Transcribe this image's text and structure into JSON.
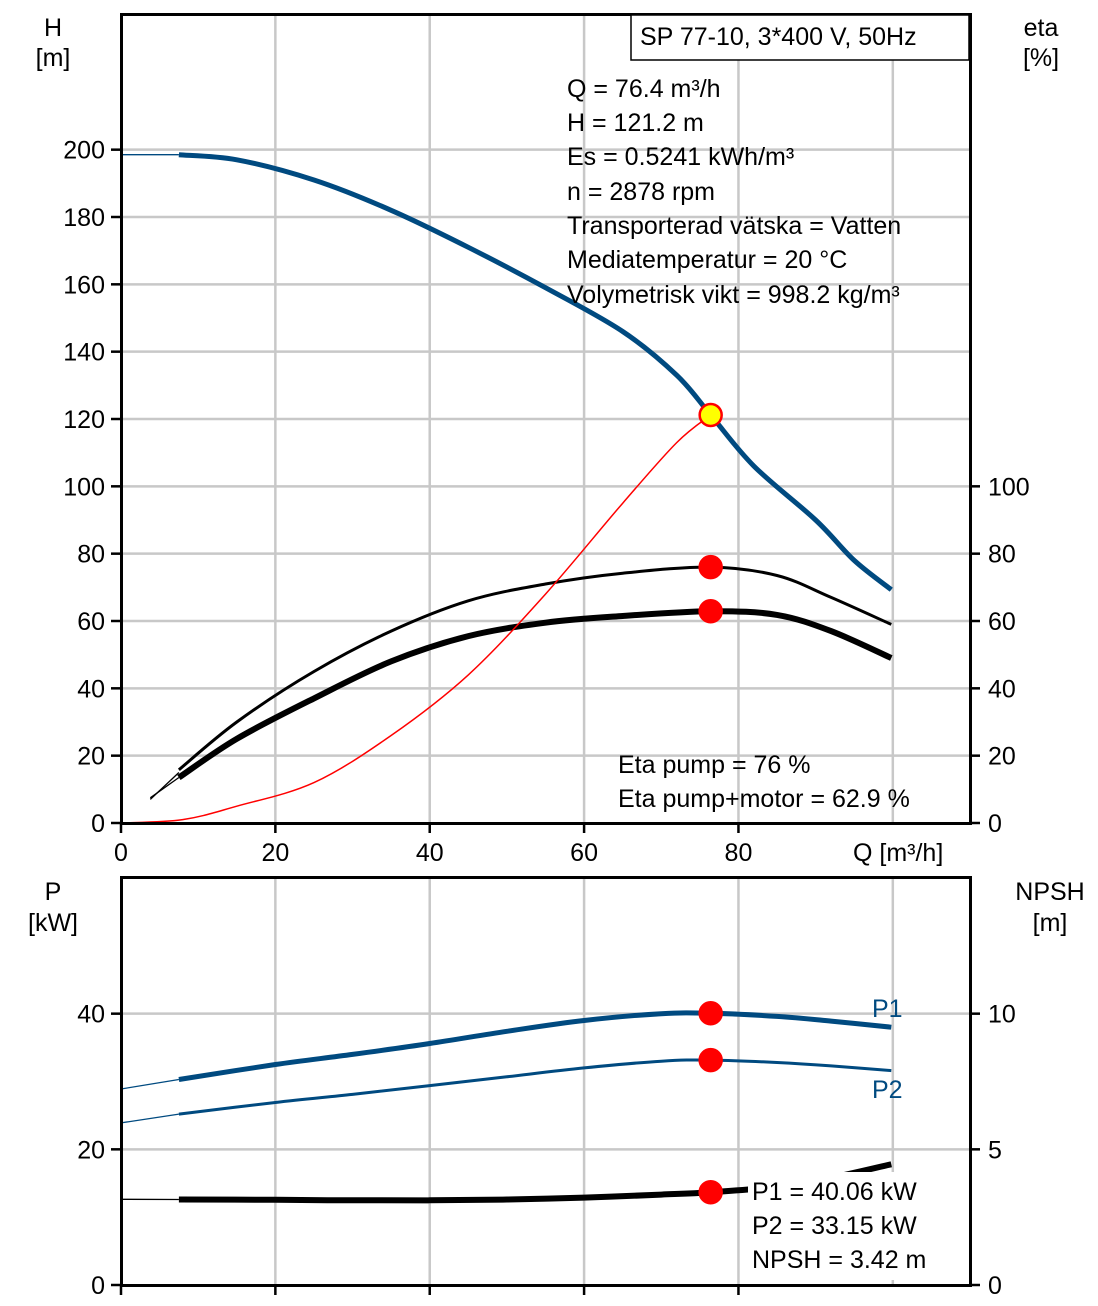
{
  "colors": {
    "blue": "#004a80",
    "black": "#000000",
    "red": "#ff0000",
    "yellow": "#ffff00",
    "grid": "#c8c8c8"
  },
  "chart_data": [
    {
      "type": "line",
      "title": "SP 77-10, 3*400 V, 50Hz",
      "xlabel": "Q [m³/h]",
      "ylabel_left": [
        "H",
        "[m]"
      ],
      "ylabel_right": [
        "eta",
        "[%]"
      ],
      "xlim": [
        0,
        110
      ],
      "ylim_left": [
        0,
        240
      ],
      "ylim_right": [
        0,
        240
      ],
      "x_ticks": [
        "0",
        "20",
        "40",
        "60",
        "80"
      ],
      "y_ticks_left": [
        "0",
        "20",
        "40",
        "60",
        "80",
        "100",
        "120",
        "140",
        "160",
        "180",
        "200"
      ],
      "y_ticks_right": [
        "0",
        "20",
        "40",
        "60",
        "80",
        "100"
      ],
      "grid": true,
      "info_lines": [
        "Q = 76.4 m³/h",
        "H = 121.2 m",
        "Es = 0.5241 kWh/m³",
        "n = 2878 rpm",
        "Transporterad vätska = Vatten",
        "Mediatemperatur = 20 °C",
        "Volymetrisk vikt = 998.2 kg/m³"
      ],
      "eta_lines": [
        "Eta pump = 76 %",
        "Eta pump+motor = 62.9 %"
      ],
      "series": [
        {
          "key": "H",
          "color": "blue",
          "width": 5,
          "ext": [
            [
              0,
              198.5
            ],
            [
              7.5,
              198.5
            ]
          ],
          "points": [
            [
              7.5,
              198.5
            ],
            [
              15,
              197
            ],
            [
              25,
              191
            ],
            [
              35,
              182
            ],
            [
              45,
              171
            ],
            [
              55,
              159
            ],
            [
              65,
              146
            ],
            [
              72,
              133
            ],
            [
              76.4,
              121.2
            ],
            [
              82,
              106
            ],
            [
              90,
              90
            ],
            [
              95,
              78
            ],
            [
              99.8,
              69.3
            ]
          ]
        },
        {
          "key": "eta_pump",
          "color": "black",
          "width": 3,
          "ext": [
            [
              3.8,
              7
            ],
            [
              7.5,
              15
            ]
          ],
          "points": [
            [
              7.5,
              15.8
            ],
            [
              15,
              30
            ],
            [
              25,
              45
            ],
            [
              35,
              57
            ],
            [
              45,
              66
            ],
            [
              55,
              71
            ],
            [
              65,
              74.2
            ],
            [
              76.4,
              76
            ],
            [
              85,
              73.5
            ],
            [
              92,
              67
            ],
            [
              99.8,
              59
            ]
          ]
        },
        {
          "key": "eta_total",
          "color": "black",
          "width": 6,
          "ext": [
            [
              3.8,
              7.5
            ],
            [
              7.5,
              13.5
            ]
          ],
          "points": [
            [
              7.5,
              13.5
            ],
            [
              15,
              25
            ],
            [
              25,
              37
            ],
            [
              35,
              48
            ],
            [
              45,
              55.5
            ],
            [
              55,
              59.5
            ],
            [
              65,
              61.5
            ],
            [
              76.4,
              62.9
            ],
            [
              85,
              61.8
            ],
            [
              92,
              57
            ],
            [
              99.8,
              49
            ]
          ]
        },
        {
          "key": "system",
          "color": "red",
          "width": 1.5,
          "ext": [],
          "points": [
            [
              0,
              0
            ],
            [
              8,
              1
            ],
            [
              15,
              5
            ],
            [
              25,
              12
            ],
            [
              35,
              26
            ],
            [
              45,
              44
            ],
            [
              55,
              68
            ],
            [
              65,
              95
            ],
            [
              72,
              113
            ],
            [
              76.4,
              121.2
            ]
          ]
        }
      ],
      "markers": [
        {
          "x": 76.4,
          "y": 121.2,
          "fill": "yellow",
          "stroke": "red"
        },
        {
          "x": 76.4,
          "y": 76,
          "fill": "red",
          "stroke": "red"
        },
        {
          "x": 76.4,
          "y": 62.9,
          "fill": "red",
          "stroke": "red"
        }
      ]
    },
    {
      "type": "line",
      "xlim": [
        0,
        110
      ],
      "ylabel_left": [
        "P",
        "[kW]"
      ],
      "ylabel_right": [
        "NPSH",
        "[m]"
      ],
      "ylim_left": [
        0,
        60
      ],
      "ylim_right": [
        0,
        15
      ],
      "y_ticks_left": [
        "0",
        "20",
        "40"
      ],
      "y_ticks_right": [
        "0",
        "5",
        "10"
      ],
      "grid": true,
      "series_labels": [
        "P1",
        "P2"
      ],
      "info_lines": [
        "P1 = 40.06 kW",
        "P2 = 33.15 kW",
        "NPSH = 3.42 m"
      ],
      "series": [
        {
          "key": "P1",
          "color": "blue",
          "width": 5,
          "ext": [
            [
              0,
              28.9
            ],
            [
              7.5,
              30.3
            ]
          ],
          "points": [
            [
              7.5,
              30.3
            ],
            [
              20,
              32.5
            ],
            [
              30,
              34
            ],
            [
              40,
              35.6
            ],
            [
              50,
              37.4
            ],
            [
              60,
              39
            ],
            [
              70,
              40
            ],
            [
              76.4,
              40.06
            ],
            [
              85,
              39.6
            ],
            [
              92,
              38.9
            ],
            [
              99.8,
              38
            ]
          ]
        },
        {
          "key": "P2",
          "color": "blue",
          "width": 3,
          "ext": [
            [
              0,
              23.9
            ],
            [
              7.5,
              25.2
            ]
          ],
          "points": [
            [
              7.5,
              25.2
            ],
            [
              20,
              26.9
            ],
            [
              30,
              28.1
            ],
            [
              40,
              29.4
            ],
            [
              50,
              30.7
            ],
            [
              60,
              32
            ],
            [
              70,
              33
            ],
            [
              76.4,
              33.15
            ],
            [
              85,
              32.8
            ],
            [
              92,
              32.3
            ],
            [
              99.8,
              31.6
            ]
          ]
        },
        {
          "key": "NPSH",
          "color": "black",
          "width": 6,
          "axis": "right",
          "ext": [
            [
              0,
              3.16
            ],
            [
              7.5,
              3.15
            ]
          ],
          "points": [
            [
              7.5,
              3.15
            ],
            [
              20,
              3.14
            ],
            [
              30,
              3.12
            ],
            [
              40,
              3.12
            ],
            [
              50,
              3.15
            ],
            [
              60,
              3.22
            ],
            [
              70,
              3.33
            ],
            [
              76.4,
              3.42
            ],
            [
              85,
              3.62
            ],
            [
              92,
              3.95
            ],
            [
              99.8,
              4.45
            ]
          ]
        }
      ],
      "markers": [
        {
          "x": 76.4,
          "y": 40.06,
          "fill": "red",
          "stroke": "red"
        },
        {
          "x": 76.4,
          "y": 33.15,
          "fill": "red",
          "stroke": "red"
        },
        {
          "x": 76.4,
          "y": 3.42,
          "fill": "red",
          "stroke": "red",
          "axis": "right"
        }
      ]
    }
  ]
}
